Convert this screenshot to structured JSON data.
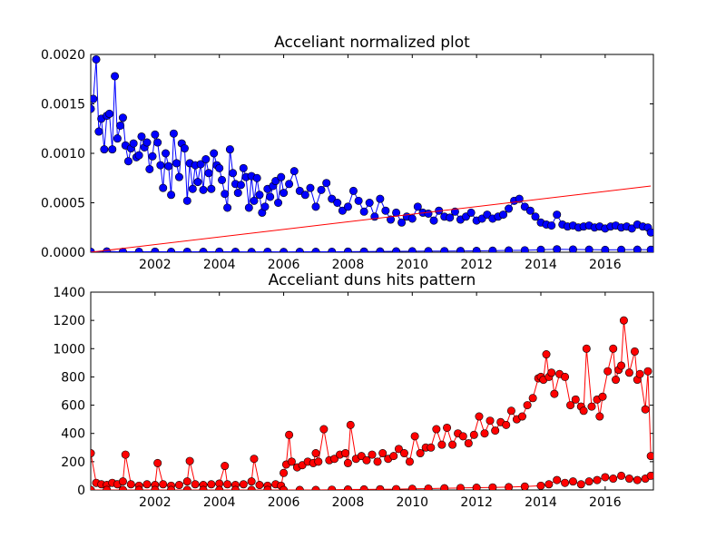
{
  "chart_data": [
    {
      "type": "line",
      "title": "Acceliant normalized plot",
      "xlabel": "",
      "ylabel": "",
      "xlim": [
        2000.0,
        2017.5
      ],
      "ylim": [
        0,
        0.002
      ],
      "x_ticks": [
        2002,
        2004,
        2006,
        2008,
        2010,
        2012,
        2014,
        2016
      ],
      "x_tick_labels": [
        "2002",
        "2004",
        "2006",
        "2008",
        "2010",
        "2012",
        "2014",
        "2016"
      ],
      "y_ticks": [
        0,
        0.0005,
        0.001,
        0.0015,
        0.002
      ],
      "y_tick_labels": [
        "0.0000",
        "0.0005",
        "0.0010",
        "0.0015",
        "0.0020"
      ],
      "grid": false,
      "series": [
        {
          "color": "#0000ff",
          "marker": "circle",
          "x": [
            2000.0,
            2000.08,
            2000.17,
            2000.25,
            2000.33,
            2000.42,
            2000.5,
            2000.58,
            2000.67,
            2000.75,
            2000.83,
            2000.92,
            2001.0,
            2001.08,
            2001.17,
            2001.25,
            2001.33,
            2001.42,
            2001.5,
            2001.58,
            2001.67,
            2001.75,
            2001.83,
            2001.92,
            2002.0,
            2002.08,
            2002.17,
            2002.25,
            2002.33,
            2002.42,
            2002.5,
            2002.58,
            2002.67,
            2002.75,
            2002.83,
            2002.92,
            2003.0,
            2003.08,
            2003.17,
            2003.25,
            2003.33,
            2003.42,
            2003.5,
            2003.58,
            2003.67,
            2003.75,
            2003.83,
            2003.92,
            2004.0,
            2004.08,
            2004.17,
            2004.25,
            2004.33,
            2004.42,
            2004.5,
            2004.58,
            2004.67,
            2004.75,
            2004.83,
            2004.92,
            2005.0,
            2005.08,
            2005.17,
            2005.25,
            2005.33,
            2005.42,
            2005.5,
            2005.58,
            2005.67,
            2005.75,
            2005.83,
            2005.92,
            2006.0,
            2006.17,
            2006.33,
            2006.5,
            2006.67,
            2006.83,
            2007.0,
            2007.17,
            2007.33,
            2007.5,
            2007.67,
            2007.83,
            2008.0,
            2008.17,
            2008.33,
            2008.5,
            2008.67,
            2008.83,
            2009.0,
            2009.17,
            2009.33,
            2009.5,
            2009.67,
            2009.83,
            2010.0,
            2010.17,
            2010.33,
            2010.5,
            2010.67,
            2010.83,
            2011.0,
            2011.17,
            2011.33,
            2011.5,
            2011.67,
            2011.83,
            2012.0,
            2012.17,
            2012.33,
            2012.5,
            2012.67,
            2012.83,
            2013.0,
            2013.17,
            2013.33,
            2013.5,
            2013.67,
            2013.83,
            2014.0,
            2014.17,
            2014.33,
            2014.5,
            2014.67,
            2014.83,
            2015.0,
            2015.17,
            2015.33,
            2015.5,
            2015.67,
            2015.83,
            2016.0,
            2016.17,
            2016.33,
            2016.5,
            2016.67,
            2016.83,
            2017.0,
            2017.17,
            2017.33,
            2017.42
          ],
          "y": [
            0.00145,
            0.00155,
            0.00195,
            0.00122,
            0.00135,
            0.00104,
            0.00138,
            0.0014,
            0.00104,
            0.00178,
            0.00115,
            0.00128,
            0.00136,
            0.00108,
            0.00092,
            0.00105,
            0.0011,
            0.00096,
            0.00098,
            0.00117,
            0.00106,
            0.00111,
            0.00084,
            0.00097,
            0.00119,
            0.00111,
            0.00088,
            0.00065,
            0.001,
            0.00087,
            0.00058,
            0.0012,
            0.0009,
            0.00076,
            0.0011,
            0.00105,
            0.00052,
            0.0009,
            0.00064,
            0.00088,
            0.00071,
            0.00089,
            0.00063,
            0.00094,
            0.0008,
            0.00064,
            0.001,
            0.00088,
            0.00085,
            0.00073,
            0.00059,
            0.00045,
            0.00104,
            0.0008,
            0.00069,
            0.0006,
            0.00068,
            0.00085,
            0.00076,
            0.00045,
            0.00077,
            0.00052,
            0.00075,
            0.00058,
            0.0004,
            0.00046,
            0.00064,
            0.00056,
            0.00067,
            0.00072,
            0.0005,
            0.00076,
            0.0006,
            0.00069,
            0.00082,
            0.00062,
            0.00058,
            0.00065,
            0.00046,
            0.00063,
            0.0007,
            0.00054,
            0.0005,
            0.00042,
            0.00046,
            0.00062,
            0.00052,
            0.00041,
            0.0005,
            0.00036,
            0.00054,
            0.00042,
            0.00033,
            0.0004,
            0.0003,
            0.00036,
            0.00034,
            0.00046,
            0.0004,
            0.00039,
            0.00032,
            0.00042,
            0.00036,
            0.00035,
            0.00041,
            0.00033,
            0.00036,
            0.0004,
            0.00032,
            0.00034,
            0.00038,
            0.00034,
            0.00036,
            0.00038,
            0.00044,
            0.00052,
            0.00054,
            0.00046,
            0.00042,
            0.00036,
            0.0003,
            0.00028,
            0.00027,
            0.00038,
            0.00028,
            0.00026,
            0.00027,
            0.00025,
            0.00026,
            0.00027,
            0.00025,
            0.00026,
            0.00024,
            0.00026,
            0.00027,
            0.00025,
            0.00026,
            0.00024,
            0.00028,
            0.00026,
            0.00025,
            0.0002
          ]
        },
        {
          "color": "#0000ff",
          "marker": "circle",
          "x": [
            2000.0,
            2000.5,
            2001.0,
            2001.5,
            2002.0,
            2002.5,
            2003.0,
            2003.5,
            2004.0,
            2004.5,
            2005.0,
            2005.5,
            2006.0,
            2006.5,
            2007.0,
            2007.5,
            2008.0,
            2008.5,
            2009.0,
            2009.5,
            2010.0,
            2010.5,
            2011.0,
            2011.5,
            2012.0,
            2012.5,
            2013.0,
            2013.5,
            2014.0,
            2014.5,
            2015.0,
            2015.5,
            2016.0,
            2016.5,
            2017.0,
            2017.42
          ],
          "y": [
            5e-06,
            8e-06,
            4e-06,
            5e-06,
            6e-06,
            4e-06,
            5e-06,
            4e-06,
            6e-06,
            4e-06,
            3e-06,
            5e-06,
            3e-06,
            4e-06,
            4e-06,
            5e-06,
            6e-06,
            7e-06,
            8e-06,
            9e-06,
            1e-05,
            1.1e-05,
            1.2e-05,
            1.3e-05,
            1.4e-05,
            1.6e-05,
            1.8e-05,
            2e-05,
            2.5e-05,
            3e-05,
            2.8e-05,
            2.6e-05,
            2.4e-05,
            2.5e-05,
            2.6e-05,
            2.5e-05
          ]
        },
        {
          "color": "#ff0000",
          "marker": "none",
          "x": [
            2000.0,
            2017.42
          ],
          "y": [
            0.0,
            0.00067
          ]
        }
      ]
    },
    {
      "type": "line",
      "title": "Acceliant duns hits pattern",
      "xlabel": "",
      "ylabel": "",
      "xlim": [
        2000.0,
        2017.5
      ],
      "ylim": [
        0,
        1400
      ],
      "x_ticks": [
        2002,
        2004,
        2006,
        2008,
        2010,
        2012,
        2014,
        2016
      ],
      "x_tick_labels": [
        "2002",
        "2004",
        "2006",
        "2008",
        "2010",
        "2012",
        "2014",
        "2016"
      ],
      "y_ticks": [
        0,
        200,
        400,
        600,
        800,
        1000,
        1200,
        1400
      ],
      "y_tick_labels": [
        "0",
        "200",
        "400",
        "600",
        "800",
        "1000",
        "1200",
        "1400"
      ],
      "grid": false,
      "series": [
        {
          "color": "#ff0000",
          "marker": "circle",
          "x": [
            2000.0,
            2000.17,
            2000.33,
            2000.5,
            2000.67,
            2000.83,
            2001.0,
            2001.08,
            2001.25,
            2001.5,
            2001.75,
            2002.0,
            2002.08,
            2002.25,
            2002.5,
            2002.75,
            2003.0,
            2003.08,
            2003.25,
            2003.5,
            2003.75,
            2004.0,
            2004.17,
            2004.25,
            2004.5,
            2004.75,
            2005.0,
            2005.08,
            2005.25,
            2005.5,
            2005.75,
            2005.92,
            2006.0,
            2006.08,
            2006.17,
            2006.25,
            2006.42,
            2006.58,
            2006.75,
            2006.92,
            2007.0,
            2007.08,
            2007.25,
            2007.42,
            2007.58,
            2007.75,
            2007.92,
            2008.0,
            2008.08,
            2008.25,
            2008.42,
            2008.58,
            2008.75,
            2008.92,
            2009.08,
            2009.25,
            2009.42,
            2009.58,
            2009.75,
            2009.92,
            2010.08,
            2010.25,
            2010.42,
            2010.58,
            2010.75,
            2010.92,
            2011.08,
            2011.25,
            2011.42,
            2011.58,
            2011.75,
            2011.92,
            2012.08,
            2012.25,
            2012.42,
            2012.58,
            2012.75,
            2012.92,
            2013.08,
            2013.25,
            2013.42,
            2013.58,
            2013.75,
            2013.92,
            2014.0,
            2014.08,
            2014.17,
            2014.25,
            2014.33,
            2014.42,
            2014.58,
            2014.75,
            2014.92,
            2015.08,
            2015.25,
            2015.33,
            2015.42,
            2015.58,
            2015.75,
            2015.83,
            2015.92,
            2016.08,
            2016.25,
            2016.33,
            2016.42,
            2016.5,
            2016.58,
            2016.75,
            2016.92,
            2017.0,
            2017.08,
            2017.25,
            2017.33,
            2017.42
          ],
          "y": [
            260,
            50,
            40,
            35,
            50,
            40,
            60,
            250,
            40,
            30,
            40,
            35,
            190,
            40,
            30,
            35,
            60,
            205,
            40,
            35,
            40,
            45,
            170,
            40,
            35,
            40,
            60,
            220,
            35,
            30,
            40,
            30,
            120,
            180,
            390,
            200,
            160,
            175,
            200,
            190,
            260,
            200,
            430,
            210,
            220,
            250,
            260,
            190,
            460,
            220,
            240,
            210,
            250,
            200,
            260,
            220,
            240,
            290,
            260,
            200,
            380,
            260,
            300,
            300,
            430,
            320,
            440,
            320,
            400,
            380,
            330,
            390,
            520,
            400,
            490,
            420,
            480,
            460,
            560,
            500,
            520,
            600,
            650,
            790,
            800,
            780,
            960,
            800,
            830,
            680,
            820,
            800,
            600,
            640,
            590,
            560,
            1000,
            590,
            640,
            520,
            660,
            840,
            1000,
            780,
            850,
            880,
            1200,
            830,
            980,
            780,
            820,
            570,
            840,
            240
          ]
        },
        {
          "color": "#ff0000",
          "marker": "circle",
          "x": [
            2000.0,
            2000.5,
            2001.0,
            2001.5,
            2002.0,
            2002.5,
            2003.0,
            2003.5,
            2004.0,
            2004.5,
            2005.0,
            2005.5,
            2006.0,
            2006.5,
            2007.0,
            2007.5,
            2008.0,
            2008.5,
            2009.0,
            2009.5,
            2010.0,
            2010.5,
            2011.0,
            2011.5,
            2012.0,
            2012.5,
            2013.0,
            2013.5,
            2014.0,
            2014.25,
            2014.5,
            2014.75,
            2015.0,
            2015.25,
            2015.5,
            2015.75,
            2016.0,
            2016.25,
            2016.5,
            2016.75,
            2017.0,
            2017.25,
            2017.42
          ],
          "y": [
            0,
            0,
            0,
            0,
            0,
            0,
            0,
            0,
            0,
            0,
            0,
            0,
            0,
            0,
            0,
            2,
            3,
            4,
            5,
            6,
            8,
            10,
            12,
            14,
            16,
            18,
            20,
            24,
            30,
            40,
            70,
            50,
            60,
            40,
            60,
            70,
            90,
            80,
            100,
            80,
            70,
            80,
            100
          ]
        }
      ]
    }
  ]
}
